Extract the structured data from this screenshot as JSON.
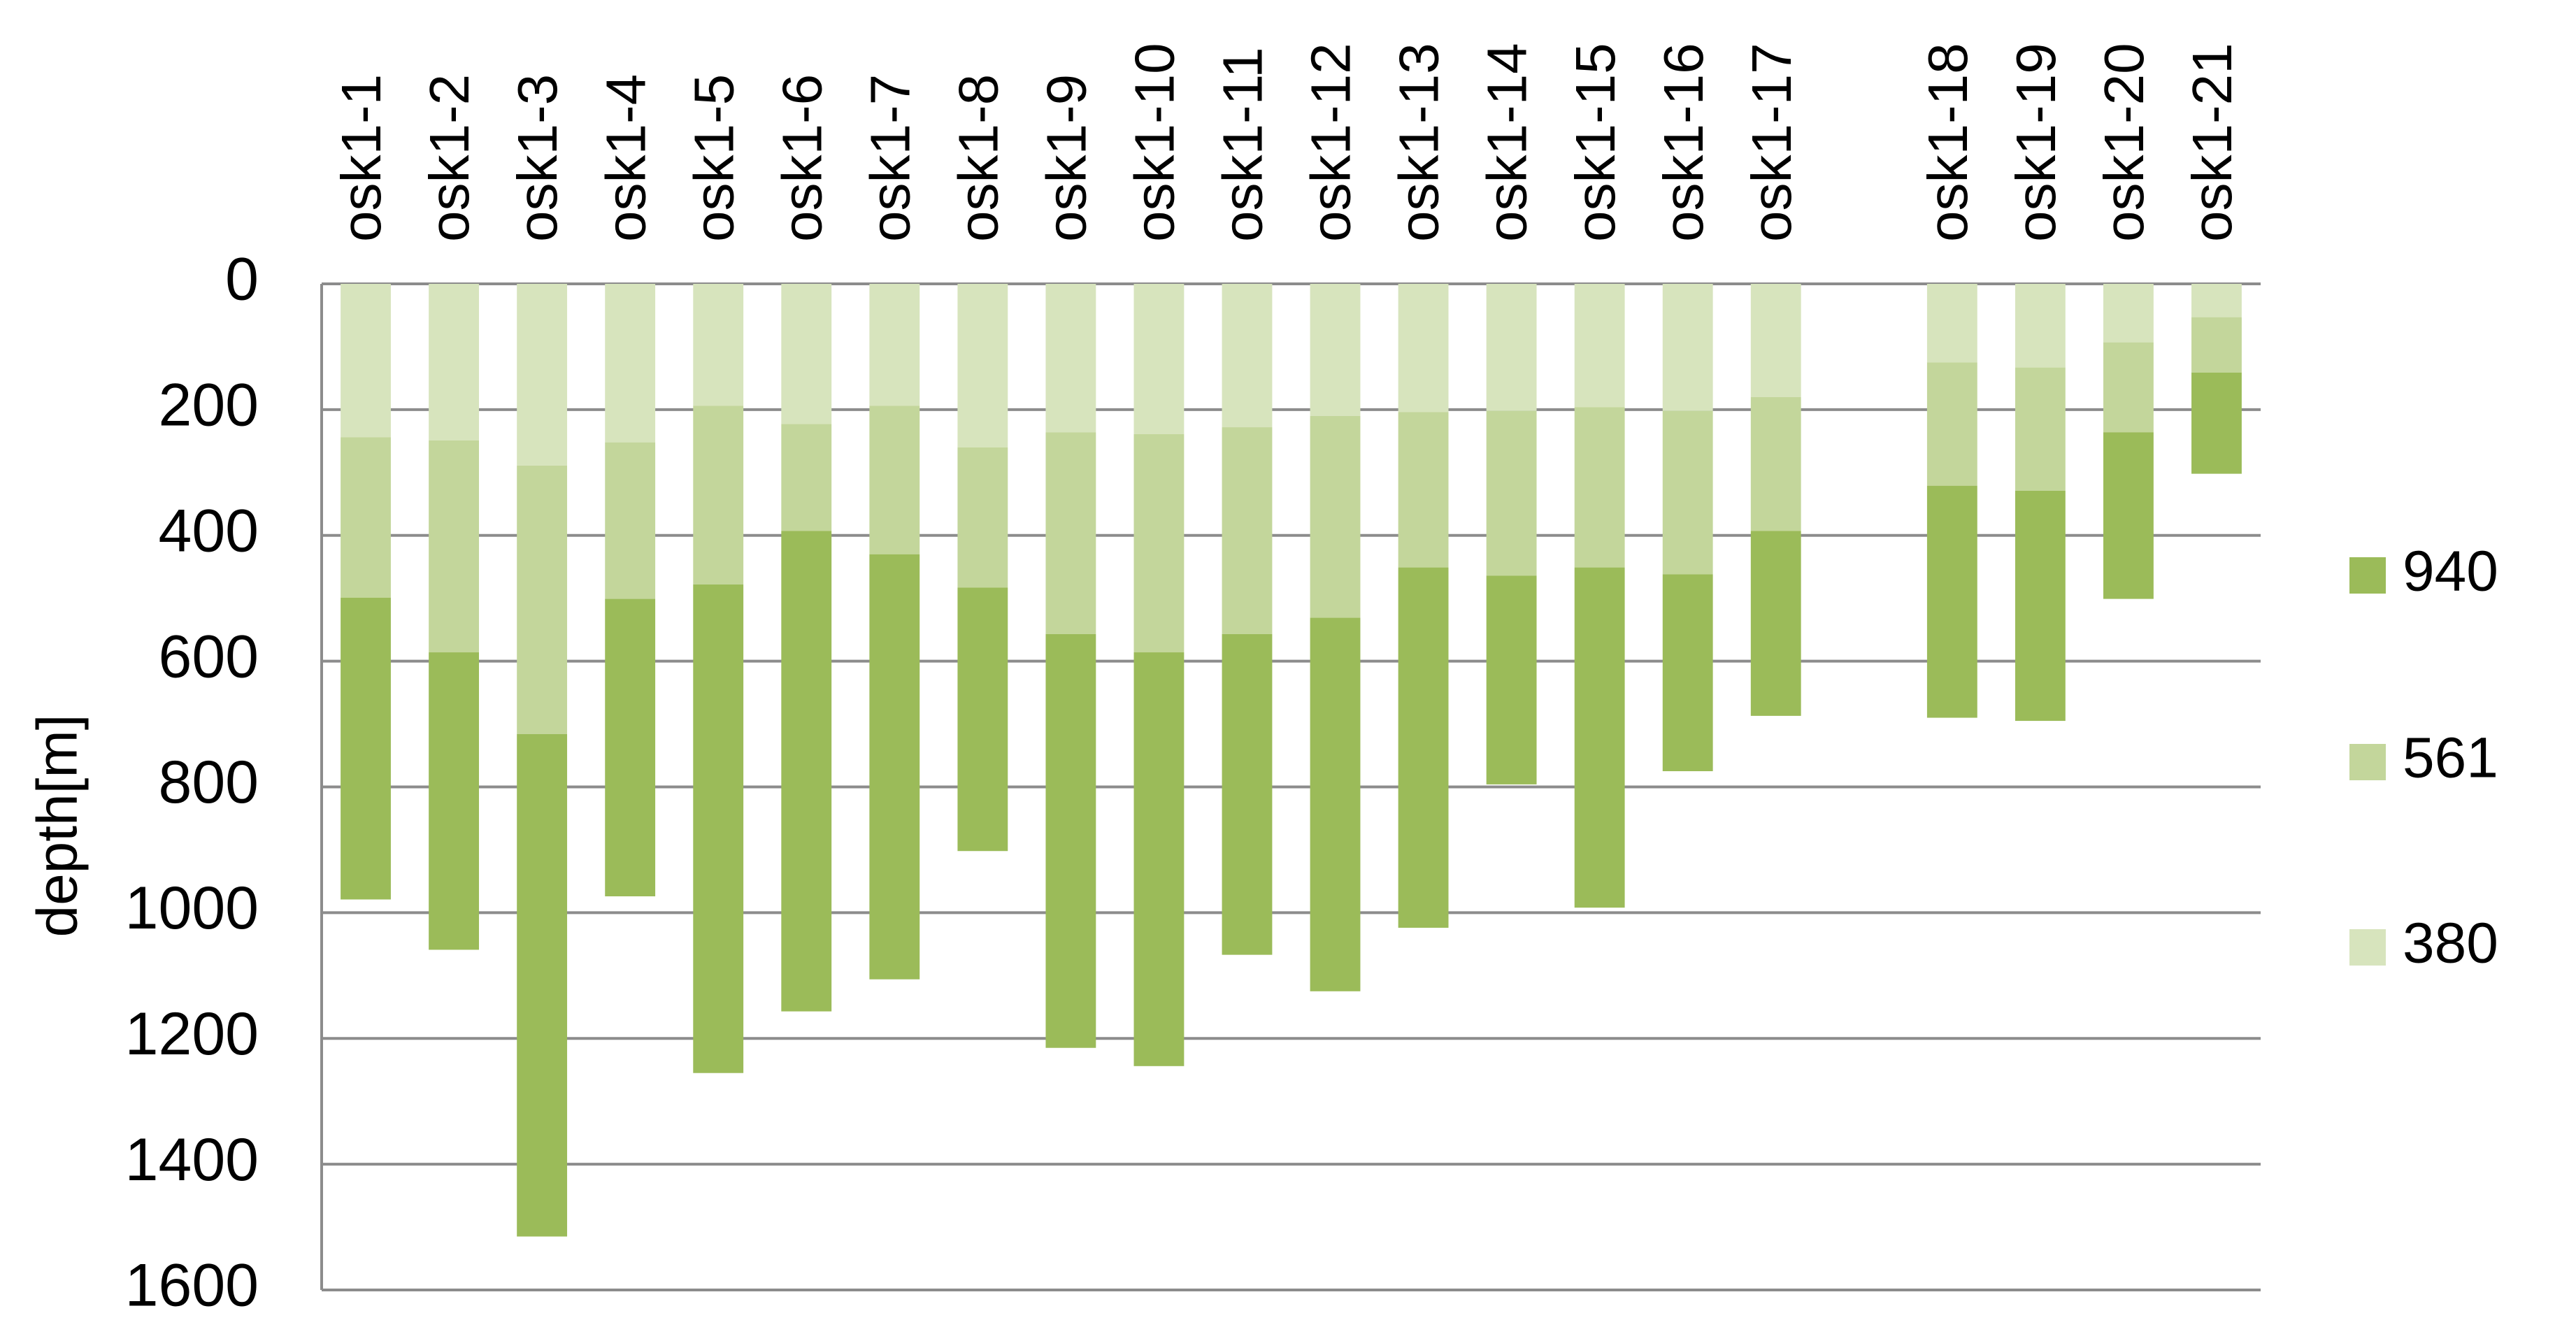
{
  "chart_data": {
    "type": "stacked_bar",
    "y_label": "depth[m]",
    "categories": [
      "osk1-1",
      "osk1-2",
      "osk1-3",
      "osk1-4",
      "osk1-5",
      "osk1-6",
      "osk1-7",
      "osk1-8",
      "osk1-9",
      "osk1-10",
      "osk1-11",
      "osk1-12",
      "osk1-13",
      "osk1-14",
      "osk1-15",
      "osk1-16",
      "osk1-17",
      null,
      "osk1-18",
      "osk1-19",
      "osk1-20",
      "osk1-21"
    ],
    "series": [
      {
        "name": "380",
        "color": "#d7e4bd",
        "values": [
          244,
          249,
          289,
          252,
          194,
          223,
          194,
          260,
          236,
          239,
          228,
          210,
          204,
          202,
          196,
          202,
          180,
          null,
          125,
          133,
          93,
          53
        ]
      },
      {
        "name": "561",
        "color": "#c3d69b",
        "values": [
          255,
          337,
          427,
          249,
          284,
          170,
          236,
          223,
          321,
          347,
          329,
          321,
          247,
          262,
          255,
          260,
          213,
          null,
          196,
          196,
          143,
          88
        ]
      },
      {
        "name": "940",
        "color": "#9bbb59",
        "values": [
          480,
          473,
          799,
          473,
          777,
          764,
          676,
          419,
          658,
          658,
          510,
          594,
          573,
          332,
          541,
          313,
          294,
          null,
          369,
          366,
          265,
          161
        ]
      }
    ],
    "ylim": [
      0,
      1600
    ],
    "yticks": [
      0,
      200,
      400,
      600,
      800,
      1000,
      1200,
      1400,
      1600
    ],
    "y_inverted": true,
    "grid": true,
    "legend": "right"
  }
}
